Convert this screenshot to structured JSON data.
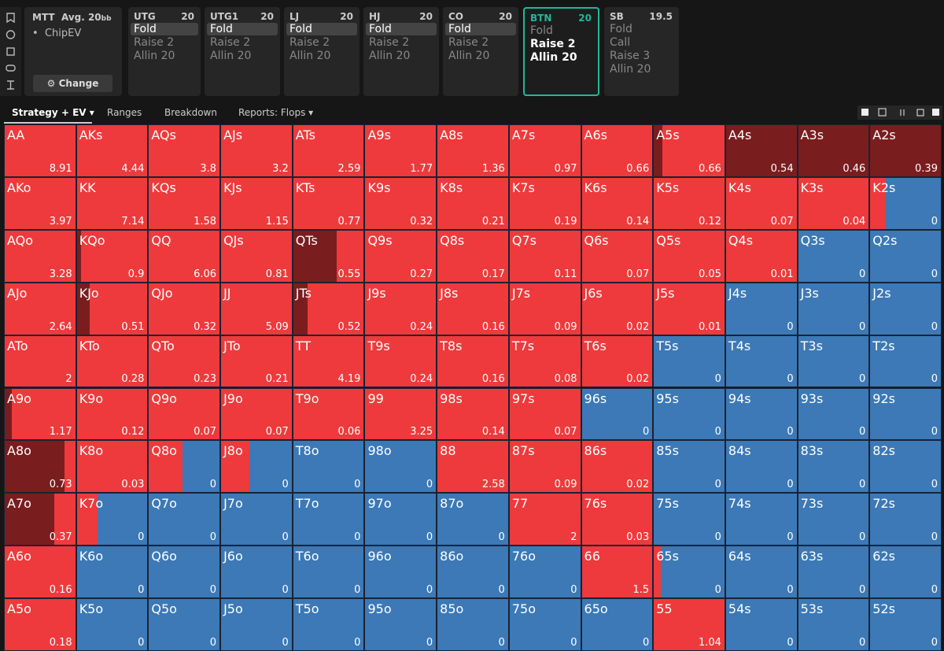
{
  "sidebar": {
    "game": "MTT",
    "avg": "Avg. 20",
    "unit": "bb",
    "mode": "ChipEV",
    "button": "Change"
  },
  "positions": [
    {
      "name": "UTG",
      "stack": 20,
      "active": false,
      "actions": [
        {
          "label": "Fold",
          "selected": true,
          "bold": false
        },
        {
          "label": "Raise 2",
          "selected": false,
          "bold": false
        },
        {
          "label": "Allin 20",
          "selected": false,
          "bold": false
        }
      ]
    },
    {
      "name": "UTG1",
      "stack": 20,
      "active": false,
      "actions": [
        {
          "label": "Fold",
          "selected": true,
          "bold": false
        },
        {
          "label": "Raise 2",
          "selected": false,
          "bold": false
        },
        {
          "label": "Allin 20",
          "selected": false,
          "bold": false
        }
      ]
    },
    {
      "name": "LJ",
      "stack": 20,
      "active": false,
      "actions": [
        {
          "label": "Fold",
          "selected": true,
          "bold": false
        },
        {
          "label": "Raise 2",
          "selected": false,
          "bold": false
        },
        {
          "label": "Allin 20",
          "selected": false,
          "bold": false
        }
      ]
    },
    {
      "name": "HJ",
      "stack": 20,
      "active": false,
      "actions": [
        {
          "label": "Fold",
          "selected": true,
          "bold": false
        },
        {
          "label": "Raise 2",
          "selected": false,
          "bold": false
        },
        {
          "label": "Allin 20",
          "selected": false,
          "bold": false
        }
      ]
    },
    {
      "name": "CO",
      "stack": 20,
      "active": false,
      "actions": [
        {
          "label": "Fold",
          "selected": true,
          "bold": false
        },
        {
          "label": "Raise 2",
          "selected": false,
          "bold": false
        },
        {
          "label": "Allin 20",
          "selected": false,
          "bold": false
        }
      ]
    },
    {
      "name": "BTN",
      "stack": 20,
      "active": true,
      "actions": [
        {
          "label": "Fold",
          "selected": false,
          "bold": false
        },
        {
          "label": "Raise 2",
          "selected": false,
          "bold": true
        },
        {
          "label": "Allin 20",
          "selected": false,
          "bold": true
        }
      ]
    },
    {
      "name": "SB",
      "stack": 19.5,
      "active": false,
      "actions": [
        {
          "label": "Fold",
          "selected": false,
          "bold": false
        },
        {
          "label": "Call",
          "selected": false,
          "bold": false
        },
        {
          "label": "Raise 3",
          "selected": false,
          "bold": false
        },
        {
          "label": "Allin 20",
          "selected": false,
          "bold": false
        }
      ]
    }
  ],
  "tabs": [
    "Strategy + EV",
    "Ranges",
    "Breakdown",
    "Reports: Flops"
  ],
  "grid": {
    "colors": {
      "allin": "#7a1d1f",
      "raise": "#ee3a3c",
      "fold": "#3c79b6"
    },
    "rows": [
      [
        [
          "AA",
          8.91,
          0,
          100,
          0
        ],
        [
          "AKs",
          4.44,
          0,
          100,
          0
        ],
        [
          "AQs",
          3.8,
          0,
          100,
          0
        ],
        [
          "AJs",
          3.2,
          0,
          100,
          0
        ],
        [
          "ATs",
          2.59,
          0,
          100,
          0
        ],
        [
          "A9s",
          1.77,
          0,
          100,
          0
        ],
        [
          "A8s",
          1.36,
          0,
          100,
          0
        ],
        [
          "A7s",
          0.97,
          0,
          100,
          0
        ],
        [
          "A6s",
          0.66,
          0,
          100,
          0
        ],
        [
          "A5s",
          0.66,
          12,
          88,
          0
        ],
        [
          "A4s",
          0.54,
          100,
          0,
          0
        ],
        [
          "A3s",
          0.46,
          100,
          0,
          0
        ],
        [
          "A2s",
          0.39,
          100,
          0,
          0
        ]
      ],
      [
        [
          "AKo",
          3.97,
          0,
          100,
          0
        ],
        [
          "KK",
          7.14,
          0,
          100,
          0
        ],
        [
          "KQs",
          1.58,
          0,
          100,
          0
        ],
        [
          "KJs",
          1.15,
          0,
          100,
          0
        ],
        [
          "KTs",
          0.77,
          0,
          100,
          0
        ],
        [
          "K9s",
          0.32,
          0,
          100,
          0
        ],
        [
          "K8s",
          0.21,
          0,
          100,
          0
        ],
        [
          "K7s",
          0.19,
          0,
          100,
          0
        ],
        [
          "K6s",
          0.14,
          0,
          100,
          0
        ],
        [
          "K5s",
          0.12,
          0,
          100,
          0
        ],
        [
          "K4s",
          0.07,
          0,
          100,
          0
        ],
        [
          "K3s",
          0.04,
          0,
          100,
          0
        ],
        [
          "K2s",
          0,
          0,
          22,
          78
        ]
      ],
      [
        [
          "AQo",
          3.28,
          0,
          100,
          0
        ],
        [
          "KQo",
          0.9,
          6,
          94,
          0
        ],
        [
          "QQ",
          6.06,
          0,
          100,
          0
        ],
        [
          "QJs",
          0.81,
          0,
          100,
          0
        ],
        [
          "QTs",
          0.55,
          62,
          38,
          0
        ],
        [
          "Q9s",
          0.27,
          0,
          100,
          0
        ],
        [
          "Q8s",
          0.17,
          0,
          100,
          0
        ],
        [
          "Q7s",
          0.11,
          0,
          100,
          0
        ],
        [
          "Q6s",
          0.07,
          0,
          100,
          0
        ],
        [
          "Q5s",
          0.05,
          0,
          100,
          0
        ],
        [
          "Q4s",
          0.01,
          0,
          100,
          0
        ],
        [
          "Q3s",
          0,
          0,
          0,
          100
        ],
        [
          "Q2s",
          0,
          0,
          0,
          100
        ]
      ],
      [
        [
          "AJo",
          2.64,
          0,
          100,
          0
        ],
        [
          "KJo",
          0.51,
          18,
          82,
          0
        ],
        [
          "QJo",
          0.32,
          0,
          100,
          0
        ],
        [
          "JJ",
          5.09,
          0,
          100,
          0
        ],
        [
          "JTs",
          0.52,
          20,
          80,
          0
        ],
        [
          "J9s",
          0.24,
          0,
          100,
          0
        ],
        [
          "J8s",
          0.16,
          0,
          100,
          0
        ],
        [
          "J7s",
          0.09,
          0,
          100,
          0
        ],
        [
          "J6s",
          0.02,
          0,
          100,
          0
        ],
        [
          "J5s",
          0.01,
          0,
          100,
          0
        ],
        [
          "J4s",
          0,
          0,
          0,
          100
        ],
        [
          "J3s",
          0,
          0,
          0,
          100
        ],
        [
          "J2s",
          0,
          0,
          0,
          100
        ]
      ],
      [
        [
          "ATo",
          2,
          0,
          100,
          0
        ],
        [
          "KTo",
          0.28,
          0,
          100,
          0
        ],
        [
          "QTo",
          0.23,
          0,
          100,
          0
        ],
        [
          "JTo",
          0.21,
          0,
          100,
          0
        ],
        [
          "TT",
          4.19,
          0,
          100,
          0
        ],
        [
          "T9s",
          0.24,
          0,
          100,
          0
        ],
        [
          "T8s",
          0.16,
          0,
          100,
          0
        ],
        [
          "T7s",
          0.08,
          0,
          100,
          0
        ],
        [
          "T6s",
          0.02,
          0,
          100,
          0
        ],
        [
          "T5s",
          0,
          0,
          0,
          100
        ],
        [
          "T4s",
          0,
          0,
          0,
          100
        ],
        [
          "T3s",
          0,
          0,
          0,
          100
        ],
        [
          "T2s",
          0,
          0,
          0,
          100
        ]
      ],
      [
        [
          "A9o",
          1.17,
          10,
          90,
          0
        ],
        [
          "K9o",
          0.12,
          0,
          100,
          0
        ],
        [
          "Q9o",
          0.07,
          0,
          100,
          0
        ],
        [
          "J9o",
          0.07,
          0,
          100,
          0
        ],
        [
          "T9o",
          0.06,
          0,
          100,
          0
        ],
        [
          "99",
          3.25,
          0,
          100,
          0
        ],
        [
          "98s",
          0.14,
          0,
          100,
          0
        ],
        [
          "97s",
          0.07,
          0,
          100,
          0
        ],
        [
          "96s",
          0,
          0,
          0,
          100
        ],
        [
          "95s",
          0,
          0,
          0,
          100
        ],
        [
          "94s",
          0,
          0,
          0,
          100
        ],
        [
          "93s",
          0,
          0,
          0,
          100
        ],
        [
          "92s",
          0,
          0,
          0,
          100
        ]
      ],
      [
        [
          "A8o",
          0.73,
          85,
          15,
          0
        ],
        [
          "K8o",
          0.03,
          0,
          100,
          0
        ],
        [
          "Q8o",
          0,
          0,
          47,
          53
        ],
        [
          "J8o",
          0,
          0,
          40,
          60
        ],
        [
          "T8o",
          0,
          0,
          0,
          100
        ],
        [
          "98o",
          0,
          0,
          0,
          100
        ],
        [
          "88",
          2.58,
          0,
          100,
          0
        ],
        [
          "87s",
          0.09,
          0,
          100,
          0
        ],
        [
          "86s",
          0.02,
          0,
          100,
          0
        ],
        [
          "85s",
          0,
          0,
          0,
          100
        ],
        [
          "84s",
          0,
          0,
          0,
          100
        ],
        [
          "83s",
          0,
          0,
          0,
          100
        ],
        [
          "82s",
          0,
          0,
          0,
          100
        ]
      ],
      [
        [
          "A7o",
          0.37,
          70,
          30,
          0
        ],
        [
          "K7o",
          0,
          0,
          29,
          71
        ],
        [
          "Q7o",
          0,
          0,
          0,
          100
        ],
        [
          "J7o",
          0,
          0,
          0,
          100
        ],
        [
          "T7o",
          0,
          0,
          0,
          100
        ],
        [
          "97o",
          0,
          0,
          0,
          100
        ],
        [
          "87o",
          0,
          0,
          0,
          100
        ],
        [
          "77",
          2,
          0,
          100,
          0
        ],
        [
          "76s",
          0.03,
          0,
          100,
          0
        ],
        [
          "75s",
          0,
          0,
          0,
          100
        ],
        [
          "74s",
          0,
          0,
          0,
          100
        ],
        [
          "73s",
          0,
          0,
          0,
          100
        ],
        [
          "72s",
          0,
          0,
          0,
          100
        ]
      ],
      [
        [
          "A6o",
          0.16,
          0,
          100,
          0
        ],
        [
          "K6o",
          0,
          0,
          0,
          100
        ],
        [
          "Q6o",
          0,
          0,
          0,
          100
        ],
        [
          "J6o",
          0,
          0,
          0,
          100
        ],
        [
          "T6o",
          0,
          0,
          0,
          100
        ],
        [
          "96o",
          0,
          0,
          0,
          100
        ],
        [
          "86o",
          0,
          0,
          0,
          100
        ],
        [
          "76o",
          0,
          0,
          0,
          100
        ],
        [
          "66",
          1.5,
          0,
          100,
          0
        ],
        [
          "65s",
          0,
          0,
          10,
          90
        ],
        [
          "64s",
          0,
          0,
          0,
          100
        ],
        [
          "63s",
          0,
          0,
          0,
          100
        ],
        [
          "62s",
          0,
          0,
          0,
          100
        ]
      ],
      [
        [
          "A5o",
          0.18,
          0,
          100,
          0
        ],
        [
          "K5o",
          0,
          0,
          0,
          100
        ],
        [
          "Q5o",
          0,
          0,
          0,
          100
        ],
        [
          "J5o",
          0,
          0,
          0,
          100
        ],
        [
          "T5o",
          0,
          0,
          0,
          100
        ],
        [
          "95o",
          0,
          0,
          0,
          100
        ],
        [
          "85o",
          0,
          0,
          0,
          100
        ],
        [
          "75o",
          0,
          0,
          0,
          100
        ],
        [
          "65o",
          0,
          0,
          0,
          100
        ],
        [
          "55",
          1.04,
          0,
          100,
          0
        ],
        [
          "54s",
          0,
          0,
          0,
          100
        ],
        [
          "53s",
          0,
          0,
          0,
          100
        ],
        [
          "52s",
          0,
          0,
          0,
          100
        ]
      ]
    ]
  }
}
